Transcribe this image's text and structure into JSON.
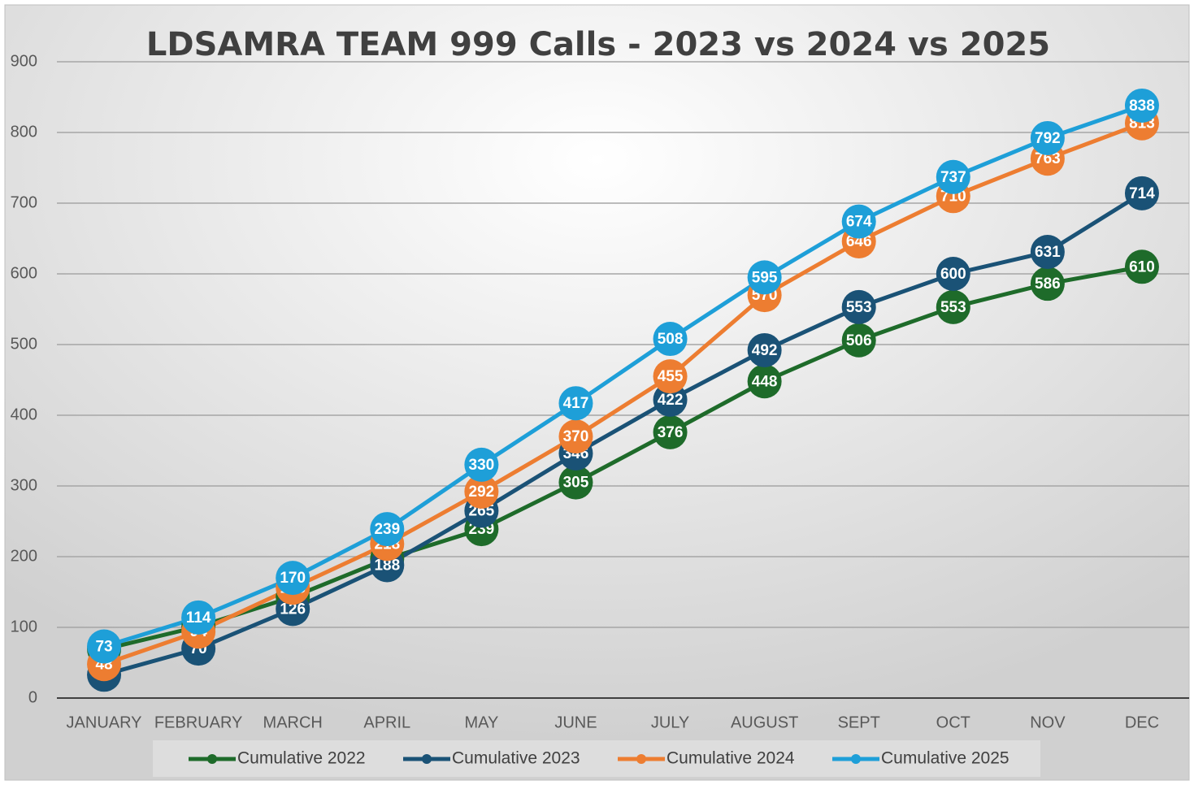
{
  "chart_data": {
    "type": "line",
    "title": "LDSAMRA TEAM 999 Calls - 2023 vs 2024 vs 2025",
    "categories": [
      "JANUARY",
      "FEBRUARY",
      "MARCH",
      "APRIL",
      "MAY",
      "JUNE",
      "JULY",
      "AUGUST",
      "SEPT",
      "OCT",
      "NOV",
      "DEC"
    ],
    "series": [
      {
        "name": "Cumulative 2022",
        "color": "#1e6b2a",
        "values": [
          69,
          101,
          143,
          197,
          239,
          305,
          376,
          448,
          506,
          553,
          586,
          610
        ]
      },
      {
        "name": "Cumulative 2023",
        "color": "#1a5276",
        "values": [
          33,
          70,
          126,
          188,
          265,
          346,
          422,
          492,
          553,
          600,
          631,
          714
        ]
      },
      {
        "name": "Cumulative 2024",
        "color": "#ed7d31",
        "values": [
          48,
          94,
          156,
          218,
          292,
          370,
          455,
          570,
          646,
          710,
          763,
          813
        ]
      },
      {
        "name": "Cumulative 2025",
        "color": "#1e9fd8",
        "values": [
          73,
          114,
          170,
          239,
          330,
          417,
          508,
          595,
          674,
          737,
          792,
          838
        ]
      }
    ],
    "ylim": [
      0,
      900
    ],
    "yticks": [
      0,
      100,
      200,
      300,
      400,
      500,
      600,
      700,
      800,
      900
    ],
    "grid": true,
    "legend": "bottom"
  }
}
